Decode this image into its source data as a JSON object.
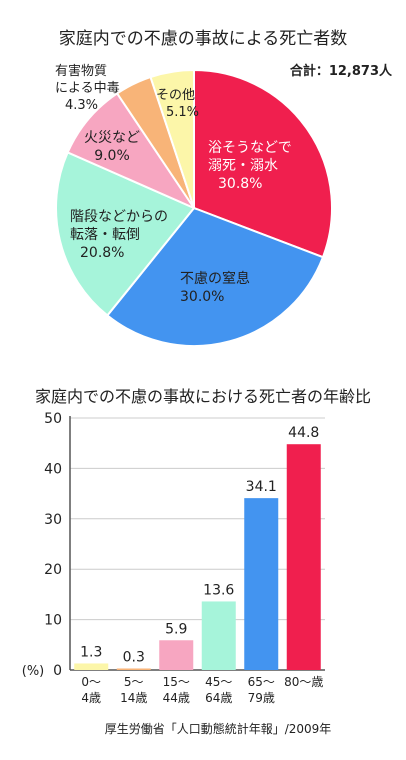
{
  "chart_data": [
    {
      "type": "pie",
      "title": "家庭内での不慮の事故による死亡者数",
      "total_label": "合計：12,873人",
      "unit": "%",
      "slices": [
        {
          "lines": [
            "浴そうなどで",
            "溺死・溺水"
          ],
          "value": 30.8,
          "value_label": "30.8%",
          "color": "#f01f4e"
        },
        {
          "lines": [
            "不慮の窒息"
          ],
          "value": 30.0,
          "value_label": "30.0%",
          "color": "#4394f0"
        },
        {
          "lines": [
            "階段などからの",
            "転落・転倒"
          ],
          "value": 20.8,
          "value_label": "20.8%",
          "color": "#a6f4da"
        },
        {
          "lines": [
            "火災など"
          ],
          "value": 9.0,
          "value_label": "9.0%",
          "color": "#f7a6c1"
        },
        {
          "lines": [
            "有害物質",
            "による中毒"
          ],
          "value": 4.3,
          "value_label": "4.3%",
          "color": "#f8b478"
        },
        {
          "lines": [
            "その他"
          ],
          "value": 5.1,
          "value_label": "5.1%",
          "color": "#fcf6a9"
        }
      ]
    },
    {
      "type": "bar",
      "title": "家庭内での不慮の事故における死亡者の年齢比",
      "ylabel": "(%)",
      "ylim": [
        0,
        50
      ],
      "yticks": [
        "0",
        "10",
        "20",
        "30",
        "40",
        "50"
      ],
      "categories": [
        [
          "0〜",
          "4歳"
        ],
        [
          "5〜",
          "14歳"
        ],
        [
          "15〜",
          "44歳"
        ],
        [
          "45〜",
          "64歳"
        ],
        [
          "65〜",
          "79歳"
        ],
        [
          "80〜歳"
        ]
      ],
      "values": [
        1.3,
        0.3,
        5.9,
        13.6,
        34.1,
        44.8
      ],
      "value_labels": [
        "1.3",
        "0.3",
        "5.9",
        "13.6",
        "34.1",
        "44.8"
      ],
      "colors": [
        "#fcf6a9",
        "#f8b478",
        "#f7a6c1",
        "#a6f4da",
        "#4394f0",
        "#f01f4e"
      ],
      "source": "厚生労働省「人口動態統計年報」/2009年"
    }
  ]
}
